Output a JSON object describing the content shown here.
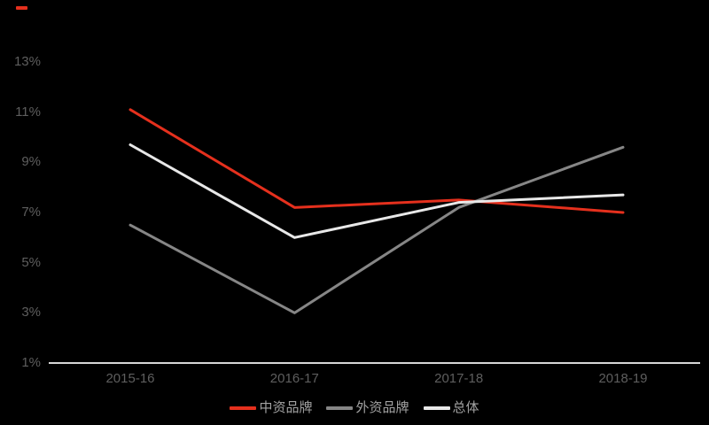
{
  "page": {
    "background_color": "#000000",
    "corner_mark_color": "#e5301d"
  },
  "axis": {
    "tick_label_color": "#5e5e5e",
    "axis_line_color": "#d6d6d6",
    "legend_text_color": "#a2a2a2"
  },
  "chart_data": {
    "type": "line",
    "title": "",
    "xlabel": "",
    "ylabel": "",
    "categories": [
      "2015-16",
      "2016-17",
      "2017-18",
      "2018-19"
    ],
    "series": [
      {
        "name": "中资品牌",
        "color": "#e5301d",
        "values": [
          11.1,
          7.2,
          7.5,
          7.0
        ]
      },
      {
        "name": "外资品牌",
        "color": "#868686",
        "values": [
          6.5,
          3.0,
          7.2,
          9.6
        ]
      },
      {
        "name": "总体",
        "color": "#e8e8e8",
        "values": [
          9.7,
          6.0,
          7.4,
          7.7
        ]
      }
    ],
    "y_ticks": [
      "13%",
      "11%",
      "9%",
      "7%",
      "5%",
      "3%",
      "1%"
    ],
    "y_tick_values": [
      13,
      11,
      9,
      7,
      5,
      3,
      1
    ],
    "ylim": [
      1,
      13
    ],
    "grid": false,
    "background": "#000000",
    "legend_position": "bottom"
  }
}
